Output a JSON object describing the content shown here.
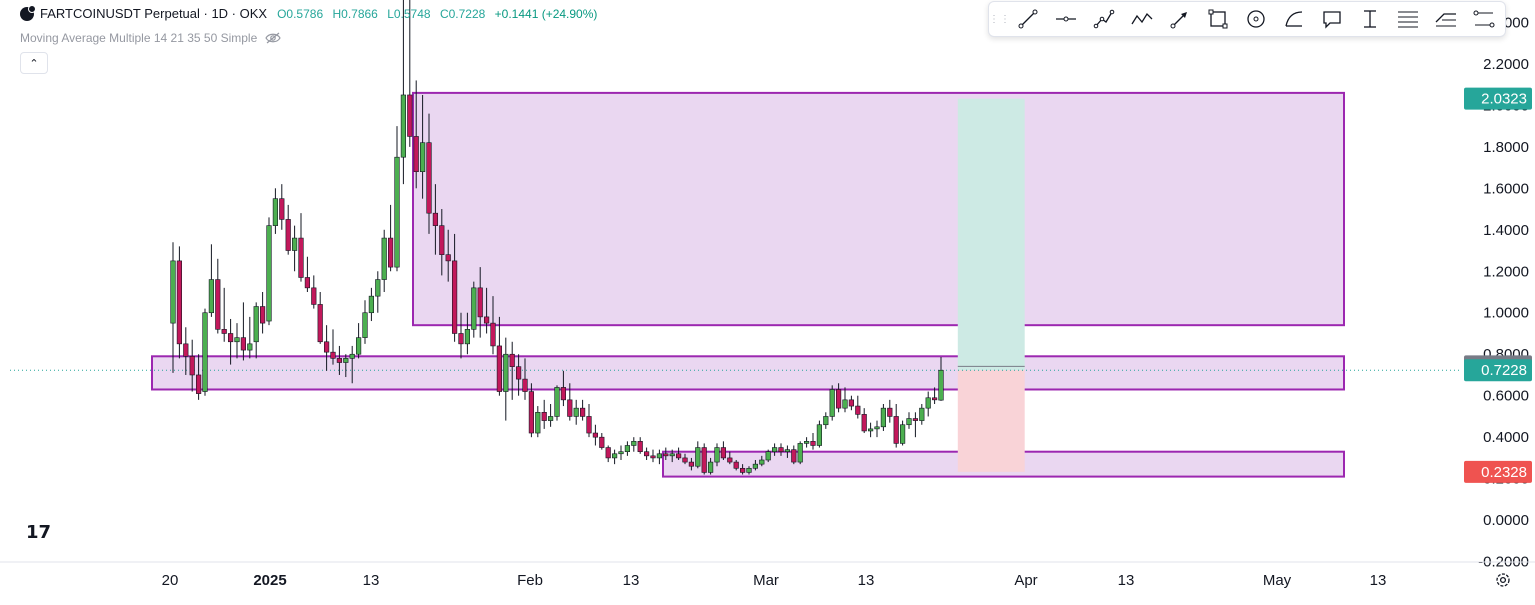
{
  "header": {
    "symbol": "FARTCOINUSDT Perpetual · 1D · OKX",
    "open": "O0.5786",
    "high": "H0.7866",
    "low": "L0.5748",
    "close": "C0.7228",
    "change": "+0.1441 (+24.90%)",
    "change_color": "#089981",
    "indicator": "Moving Average Multiple 14 21 35 50 Simple"
  },
  "toolbar": {
    "tools": [
      "trend-line-icon",
      "horizontal-ray-icon",
      "path-icon",
      "polyline-icon",
      "arrow-icon",
      "rectangle-icon",
      "circle-icon",
      "curve-icon",
      "callout-icon",
      "text-icon",
      "fib-retracement-icon",
      "long-position-icon",
      "range-icon"
    ]
  },
  "colors": {
    "up": "#26a69a",
    "down": "#ef5350",
    "candle_up": "#4caf50",
    "candle_down": "#c2185b",
    "zone_fill": "#e6d0ef",
    "zone_stroke": "#9c27b0",
    "target_fill": "#cdeae4",
    "stop_fill": "#f9d3d7"
  },
  "chart_data": {
    "type": "candlestick",
    "x_axis": {
      "labels": [
        "20",
        "2025",
        "13",
        "Feb",
        "13",
        "Mar",
        "13",
        "Apr",
        "13",
        "May",
        "13"
      ]
    },
    "y_axis": {
      "ticks": [
        "-0.2000",
        "0.0000",
        "0.2000",
        "0.4000",
        "0.6000",
        "0.8000",
        "1.0000",
        "1.2000",
        "1.4000",
        "1.6000",
        "1.8000",
        "2.0000",
        "2.2000",
        "2.4000"
      ],
      "range": [
        -0.25,
        2.45
      ]
    },
    "price_labels": [
      {
        "value": 2.0323,
        "text": "2.0323",
        "color": "#26a69a"
      },
      {
        "value": 0.7416,
        "text": "0.7416",
        "color": "#787b86"
      },
      {
        "value": 0.7228,
        "text": "0.7228",
        "color": "#26a69a"
      },
      {
        "value": 0.2328,
        "text": "0.2328",
        "color": "#ef5350"
      }
    ],
    "zones": [
      {
        "name": "resistance-zone-top",
        "from": 0.94,
        "to": 2.06,
        "start_day": 0,
        "end_day": 132
      },
      {
        "name": "support-zone-mid",
        "from": 0.63,
        "to": 0.79,
        "start_day": -1,
        "end_day": 132
      },
      {
        "name": "support-zone-bottom",
        "from": 0.21,
        "to": 0.33,
        "start_day": 0,
        "end_day": 132
      }
    ],
    "position": {
      "entry": 0.7228,
      "target": 2.0323,
      "stop": 0.2328
    },
    "candles": [
      {
        "o": 0.95,
        "h": 1.34,
        "l": 0.71,
        "c": 1.25
      },
      {
        "o": 1.25,
        "h": 1.32,
        "l": 0.78,
        "c": 0.85
      },
      {
        "o": 0.85,
        "h": 0.93,
        "l": 0.7,
        "c": 0.79
      },
      {
        "o": 0.79,
        "h": 0.87,
        "l": 0.62,
        "c": 0.7
      },
      {
        "o": 0.7,
        "h": 0.8,
        "l": 0.58,
        "c": 0.61
      },
      {
        "o": 0.62,
        "h": 1.02,
        "l": 0.6,
        "c": 1.0
      },
      {
        "o": 1.0,
        "h": 1.33,
        "l": 0.98,
        "c": 1.16
      },
      {
        "o": 1.16,
        "h": 1.26,
        "l": 0.9,
        "c": 0.92
      },
      {
        "o": 0.92,
        "h": 1.12,
        "l": 0.86,
        "c": 0.9
      },
      {
        "o": 0.9,
        "h": 0.97,
        "l": 0.75,
        "c": 0.86
      },
      {
        "o": 0.86,
        "h": 0.95,
        "l": 0.78,
        "c": 0.88
      },
      {
        "o": 0.88,
        "h": 1.05,
        "l": 0.77,
        "c": 0.82
      },
      {
        "o": 0.82,
        "h": 0.98,
        "l": 0.78,
        "c": 0.85
      },
      {
        "o": 0.86,
        "h": 1.05,
        "l": 0.78,
        "c": 1.03
      },
      {
        "o": 1.03,
        "h": 1.1,
        "l": 0.9,
        "c": 0.95
      },
      {
        "o": 0.96,
        "h": 1.46,
        "l": 0.94,
        "c": 1.42
      },
      {
        "o": 1.42,
        "h": 1.6,
        "l": 1.38,
        "c": 1.55
      },
      {
        "o": 1.55,
        "h": 1.62,
        "l": 1.4,
        "c": 1.45
      },
      {
        "o": 1.45,
        "h": 1.52,
        "l": 1.28,
        "c": 1.3
      },
      {
        "o": 1.3,
        "h": 1.42,
        "l": 1.2,
        "c": 1.36
      },
      {
        "o": 1.36,
        "h": 1.48,
        "l": 1.15,
        "c": 1.17
      },
      {
        "o": 1.17,
        "h": 1.27,
        "l": 1.1,
        "c": 1.12
      },
      {
        "o": 1.12,
        "h": 1.18,
        "l": 1.02,
        "c": 1.04
      },
      {
        "o": 1.04,
        "h": 1.1,
        "l": 0.85,
        "c": 0.86
      },
      {
        "o": 0.86,
        "h": 0.94,
        "l": 0.72,
        "c": 0.81
      },
      {
        "o": 0.81,
        "h": 0.92,
        "l": 0.75,
        "c": 0.78
      },
      {
        "o": 0.78,
        "h": 0.84,
        "l": 0.7,
        "c": 0.76
      },
      {
        "o": 0.76,
        "h": 0.8,
        "l": 0.69,
        "c": 0.78
      },
      {
        "o": 0.78,
        "h": 0.84,
        "l": 0.66,
        "c": 0.8
      },
      {
        "o": 0.8,
        "h": 0.95,
        "l": 0.78,
        "c": 0.88
      },
      {
        "o": 0.88,
        "h": 1.06,
        "l": 0.85,
        "c": 1.0
      },
      {
        "o": 1.0,
        "h": 1.12,
        "l": 0.96,
        "c": 1.08
      },
      {
        "o": 1.08,
        "h": 1.2,
        "l": 1.0,
        "c": 1.16
      },
      {
        "o": 1.16,
        "h": 1.4,
        "l": 1.1,
        "c": 1.36
      },
      {
        "o": 1.36,
        "h": 1.52,
        "l": 1.2,
        "c": 1.22
      },
      {
        "o": 1.22,
        "h": 1.9,
        "l": 1.2,
        "c": 1.75
      },
      {
        "o": 1.75,
        "h": 2.58,
        "l": 1.62,
        "c": 2.05
      },
      {
        "o": 2.05,
        "h": 2.62,
        "l": 1.8,
        "c": 1.85
      },
      {
        "o": 1.85,
        "h": 2.12,
        "l": 1.6,
        "c": 1.68
      },
      {
        "o": 1.68,
        "h": 2.05,
        "l": 1.55,
        "c": 1.82
      },
      {
        "o": 1.82,
        "h": 1.96,
        "l": 1.38,
        "c": 1.48
      },
      {
        "o": 1.48,
        "h": 1.62,
        "l": 1.28,
        "c": 1.42
      },
      {
        "o": 1.42,
        "h": 1.5,
        "l": 1.18,
        "c": 1.28
      },
      {
        "o": 1.28,
        "h": 1.4,
        "l": 1.15,
        "c": 1.25
      },
      {
        "o": 1.25,
        "h": 1.38,
        "l": 0.86,
        "c": 0.9
      },
      {
        "o": 0.9,
        "h": 1.0,
        "l": 0.78,
        "c": 0.85
      },
      {
        "o": 0.85,
        "h": 1.0,
        "l": 0.8,
        "c": 0.92
      },
      {
        "o": 0.92,
        "h": 1.15,
        "l": 0.88,
        "c": 1.12
      },
      {
        "o": 1.12,
        "h": 1.22,
        "l": 0.88,
        "c": 0.98
      },
      {
        "o": 0.98,
        "h": 1.12,
        "l": 0.9,
        "c": 0.95
      },
      {
        "o": 0.95,
        "h": 1.08,
        "l": 0.8,
        "c": 0.84
      },
      {
        "o": 0.84,
        "h": 0.98,
        "l": 0.6,
        "c": 0.62
      },
      {
        "o": 0.62,
        "h": 0.88,
        "l": 0.48,
        "c": 0.8
      },
      {
        "o": 0.8,
        "h": 0.86,
        "l": 0.58,
        "c": 0.74
      },
      {
        "o": 0.74,
        "h": 0.8,
        "l": 0.6,
        "c": 0.68
      },
      {
        "o": 0.68,
        "h": 0.78,
        "l": 0.58,
        "c": 0.62
      },
      {
        "o": 0.62,
        "h": 0.66,
        "l": 0.4,
        "c": 0.42
      },
      {
        "o": 0.42,
        "h": 0.55,
        "l": 0.4,
        "c": 0.52
      },
      {
        "o": 0.52,
        "h": 0.58,
        "l": 0.44,
        "c": 0.48
      },
      {
        "o": 0.48,
        "h": 0.56,
        "l": 0.45,
        "c": 0.5
      },
      {
        "o": 0.5,
        "h": 0.65,
        "l": 0.48,
        "c": 0.64
      },
      {
        "o": 0.64,
        "h": 0.72,
        "l": 0.55,
        "c": 0.58
      },
      {
        "o": 0.58,
        "h": 0.66,
        "l": 0.48,
        "c": 0.5
      },
      {
        "o": 0.5,
        "h": 0.58,
        "l": 0.46,
        "c": 0.54
      },
      {
        "o": 0.54,
        "h": 0.58,
        "l": 0.48,
        "c": 0.5
      },
      {
        "o": 0.5,
        "h": 0.56,
        "l": 0.4,
        "c": 0.42
      },
      {
        "o": 0.42,
        "h": 0.46,
        "l": 0.36,
        "c": 0.4
      },
      {
        "o": 0.4,
        "h": 0.42,
        "l": 0.34,
        "c": 0.35
      },
      {
        "o": 0.35,
        "h": 0.36,
        "l": 0.28,
        "c": 0.3
      },
      {
        "o": 0.3,
        "h": 0.34,
        "l": 0.27,
        "c": 0.32
      },
      {
        "o": 0.32,
        "h": 0.36,
        "l": 0.29,
        "c": 0.33
      },
      {
        "o": 0.33,
        "h": 0.38,
        "l": 0.31,
        "c": 0.36
      },
      {
        "o": 0.36,
        "h": 0.4,
        "l": 0.33,
        "c": 0.38
      },
      {
        "o": 0.38,
        "h": 0.4,
        "l": 0.32,
        "c": 0.33
      },
      {
        "o": 0.33,
        "h": 0.35,
        "l": 0.29,
        "c": 0.31
      },
      {
        "o": 0.31,
        "h": 0.34,
        "l": 0.28,
        "c": 0.3
      },
      {
        "o": 0.3,
        "h": 0.34,
        "l": 0.27,
        "c": 0.32
      },
      {
        "o": 0.32,
        "h": 0.35,
        "l": 0.29,
        "c": 0.31
      },
      {
        "o": 0.31,
        "h": 0.34,
        "l": 0.28,
        "c": 0.32
      },
      {
        "o": 0.32,
        "h": 0.35,
        "l": 0.29,
        "c": 0.3
      },
      {
        "o": 0.3,
        "h": 0.32,
        "l": 0.27,
        "c": 0.28
      },
      {
        "o": 0.28,
        "h": 0.3,
        "l": 0.24,
        "c": 0.26
      },
      {
        "o": 0.26,
        "h": 0.38,
        "l": 0.25,
        "c": 0.35
      },
      {
        "o": 0.35,
        "h": 0.37,
        "l": 0.22,
        "c": 0.23
      },
      {
        "o": 0.23,
        "h": 0.3,
        "l": 0.22,
        "c": 0.28
      },
      {
        "o": 0.28,
        "h": 0.37,
        "l": 0.26,
        "c": 0.35
      },
      {
        "o": 0.35,
        "h": 0.38,
        "l": 0.29,
        "c": 0.3
      },
      {
        "o": 0.3,
        "h": 0.33,
        "l": 0.27,
        "c": 0.28
      },
      {
        "o": 0.28,
        "h": 0.29,
        "l": 0.24,
        "c": 0.25
      },
      {
        "o": 0.25,
        "h": 0.27,
        "l": 0.22,
        "c": 0.23
      },
      {
        "o": 0.23,
        "h": 0.26,
        "l": 0.22,
        "c": 0.25
      },
      {
        "o": 0.25,
        "h": 0.29,
        "l": 0.24,
        "c": 0.27
      },
      {
        "o": 0.27,
        "h": 0.31,
        "l": 0.26,
        "c": 0.29
      },
      {
        "o": 0.29,
        "h": 0.34,
        "l": 0.28,
        "c": 0.33
      },
      {
        "o": 0.33,
        "h": 0.37,
        "l": 0.31,
        "c": 0.35
      },
      {
        "o": 0.35,
        "h": 0.37,
        "l": 0.31,
        "c": 0.33
      },
      {
        "o": 0.33,
        "h": 0.36,
        "l": 0.3,
        "c": 0.34
      },
      {
        "o": 0.34,
        "h": 0.36,
        "l": 0.27,
        "c": 0.28
      },
      {
        "o": 0.28,
        "h": 0.38,
        "l": 0.27,
        "c": 0.37
      },
      {
        "o": 0.37,
        "h": 0.4,
        "l": 0.35,
        "c": 0.38
      },
      {
        "o": 0.38,
        "h": 0.42,
        "l": 0.34,
        "c": 0.36
      },
      {
        "o": 0.36,
        "h": 0.48,
        "l": 0.35,
        "c": 0.46
      },
      {
        "o": 0.46,
        "h": 0.52,
        "l": 0.44,
        "c": 0.5
      },
      {
        "o": 0.5,
        "h": 0.65,
        "l": 0.48,
        "c": 0.63
      },
      {
        "o": 0.63,
        "h": 0.66,
        "l": 0.52,
        "c": 0.54
      },
      {
        "o": 0.54,
        "h": 0.64,
        "l": 0.52,
        "c": 0.58
      },
      {
        "o": 0.58,
        "h": 0.6,
        "l": 0.53,
        "c": 0.55
      },
      {
        "o": 0.55,
        "h": 0.6,
        "l": 0.49,
        "c": 0.51
      },
      {
        "o": 0.51,
        "h": 0.54,
        "l": 0.42,
        "c": 0.43
      },
      {
        "o": 0.43,
        "h": 0.47,
        "l": 0.4,
        "c": 0.44
      },
      {
        "o": 0.44,
        "h": 0.48,
        "l": 0.4,
        "c": 0.45
      },
      {
        "o": 0.45,
        "h": 0.56,
        "l": 0.43,
        "c": 0.54
      },
      {
        "o": 0.54,
        "h": 0.58,
        "l": 0.47,
        "c": 0.5
      },
      {
        "o": 0.5,
        "h": 0.56,
        "l": 0.35,
        "c": 0.37
      },
      {
        "o": 0.37,
        "h": 0.48,
        "l": 0.36,
        "c": 0.46
      },
      {
        "o": 0.46,
        "h": 0.52,
        "l": 0.44,
        "c": 0.49
      },
      {
        "o": 0.49,
        "h": 0.52,
        "l": 0.4,
        "c": 0.48
      },
      {
        "o": 0.48,
        "h": 0.56,
        "l": 0.46,
        "c": 0.54
      },
      {
        "o": 0.54,
        "h": 0.62,
        "l": 0.5,
        "c": 0.59
      },
      {
        "o": 0.59,
        "h": 0.64,
        "l": 0.56,
        "c": 0.58
      },
      {
        "o": 0.5786,
        "h": 0.7866,
        "l": 0.5748,
        "c": 0.7228
      }
    ]
  }
}
